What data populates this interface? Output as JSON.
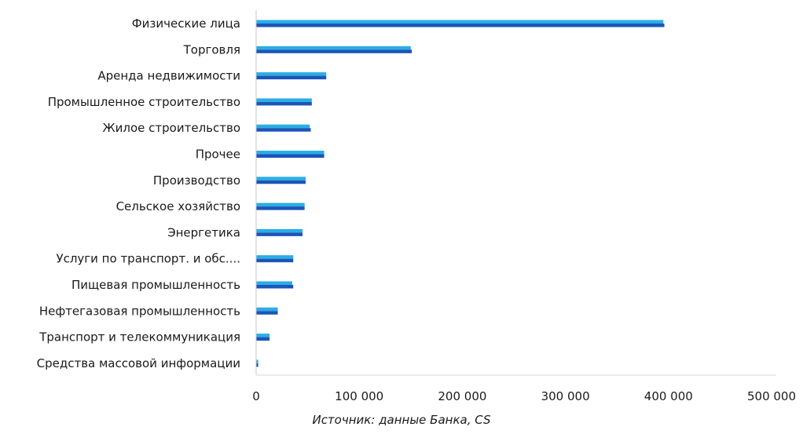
{
  "chart_data": {
    "type": "bar",
    "orientation": "horizontal",
    "categories": [
      "Физические лица",
      "Торговля",
      "Аренда недвижимости",
      "Промышленное строительство",
      "Жилое строительство",
      "Прочее",
      "Производство",
      "Сельское хозяйство",
      "Энергетика",
      "Услуги по транспорт. и обс....",
      "Пищевая промышленность",
      "Нефтегазовая промышленность",
      "Транспорт и телекоммуникация",
      "Средства массовой информации"
    ],
    "series": [
      {
        "values": [
          395000,
          150000,
          68000,
          54000,
          52000,
          66000,
          48000,
          47000,
          45000,
          36000,
          35000,
          21000,
          13000,
          2000
        ]
      },
      {
        "values": [
          396000,
          151000,
          68000,
          54000,
          53000,
          66000,
          48000,
          47000,
          45000,
          36000,
          36000,
          21000,
          13000,
          2000
        ]
      }
    ],
    "xlim": [
      0,
      500000
    ],
    "xticks": [
      "0",
      "100 000",
      "200 000",
      "300 000",
      "400 000",
      "500 000"
    ],
    "colors": [
      "#29aee6",
      "#1c55b8"
    ],
    "grid": false,
    "legend": "none"
  },
  "source": "Источник: данные Банка, CS"
}
